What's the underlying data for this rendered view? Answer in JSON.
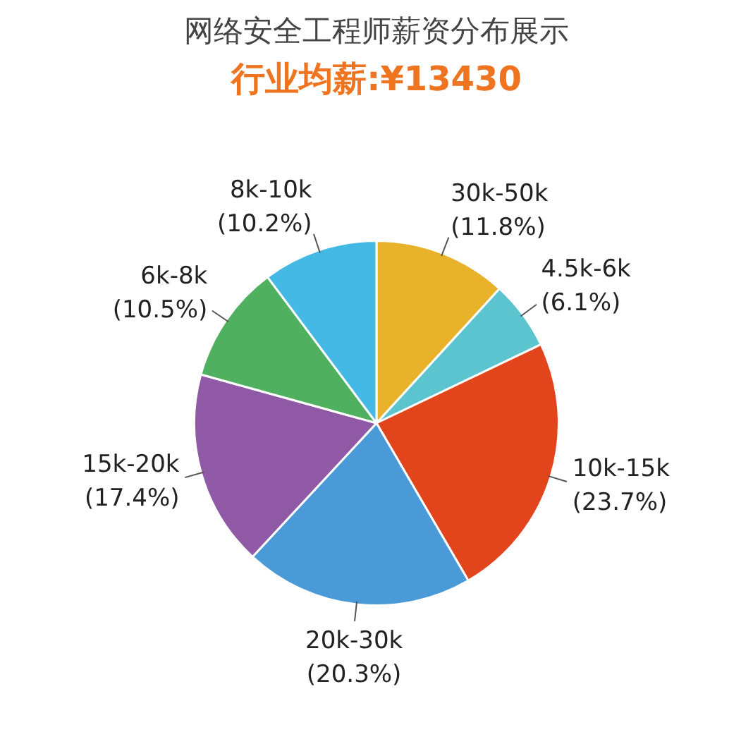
{
  "chart_data": {
    "type": "pie",
    "title": "网络安全工程师薪资分布展示",
    "subtitle": "行业均薪:¥13430",
    "categories": [
      "30k-50k",
      "4.5k-6k",
      "10k-15k",
      "20k-30k",
      "15k-20k",
      "6k-8k",
      "8k-10k"
    ],
    "values": [
      11.8,
      6.1,
      23.7,
      20.3,
      17.4,
      10.5,
      10.2
    ],
    "value_labels": [
      "(11.8%)",
      "(6.1%)",
      "(23.7%)",
      "(20.3%)",
      "(17.4%)",
      "(10.5%)",
      "(10.2%)"
    ],
    "colors": [
      "#e8b32a",
      "#5bc4cf",
      "#e2441b",
      "#4b9ad8",
      "#9059a5",
      "#4fb15f",
      "#45b9e6"
    ],
    "legend": false
  }
}
